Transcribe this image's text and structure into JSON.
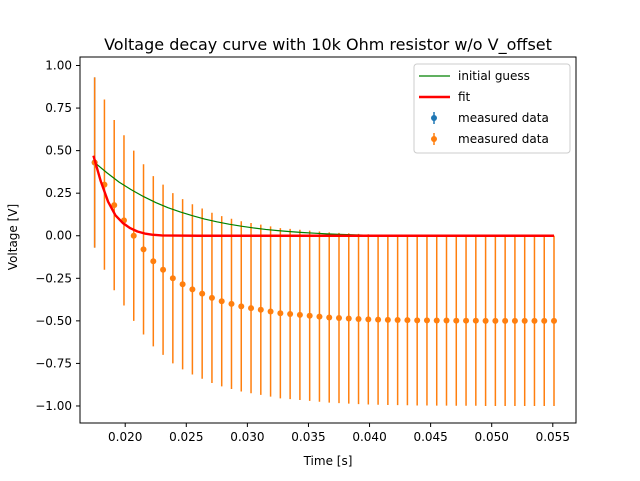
{
  "chart_data": {
    "type": "scatter",
    "title": "Voltage decay curve with 10k Ohm resistor w/o V_offset",
    "xlabel": "Time [s]",
    "ylabel": "Voltage [V]",
    "xlim": [
      0.0163,
      0.0569
    ],
    "ylim": [
      -1.1,
      1.05
    ],
    "xticks": [
      0.02,
      0.025,
      0.03,
      0.035,
      0.04,
      0.045,
      0.05,
      0.055
    ],
    "xtick_labels": [
      "0.020",
      "0.025",
      "0.030",
      "0.035",
      "0.040",
      "0.045",
      "0.050",
      "0.055"
    ],
    "yticks": [
      1.0,
      0.75,
      0.5,
      0.25,
      0.0,
      -0.25,
      -0.5,
      -0.75,
      -1.0
    ],
    "ytick_labels": [
      "1.00",
      "0.75",
      "0.50",
      "0.25",
      "0.00",
      "−0.25",
      "−0.50",
      "−0.75",
      "−1.00"
    ],
    "grid": false,
    "legend_position": "top-right",
    "legend": [
      {
        "label": "initial guess",
        "kind": "line",
        "color": "#008000"
      },
      {
        "label": " fit",
        "kind": "line",
        "color": "#ff0000"
      },
      {
        "label": "measured data",
        "kind": "errorbar",
        "color": "#1f77b4"
      },
      {
        "label": "measured data",
        "kind": "errorbar",
        "color": "#ff7f0e"
      }
    ],
    "series": [
      {
        "name": "initial guess",
        "kind": "line",
        "color": "#008000",
        "x": [
          0.0175,
          0.0185,
          0.0195,
          0.0205,
          0.0215,
          0.0225,
          0.0235,
          0.0245,
          0.0255,
          0.0265,
          0.0275,
          0.0285,
          0.0295,
          0.0305,
          0.0315,
          0.0325,
          0.0335,
          0.0345,
          0.0355,
          0.0365,
          0.0375,
          0.0385,
          0.0395,
          0.0405,
          0.043,
          0.046,
          0.049,
          0.052,
          0.0551
        ],
        "y": [
          0.43,
          0.37,
          0.315,
          0.27,
          0.23,
          0.195,
          0.165,
          0.14,
          0.118,
          0.098,
          0.082,
          0.068,
          0.056,
          0.046,
          0.037,
          0.03,
          0.024,
          0.019,
          0.015,
          0.011,
          0.008,
          0.006,
          0.004,
          0.003,
          0.002,
          0.001,
          0.0,
          0.0,
          0.0
        ]
      },
      {
        "name": " fit",
        "kind": "line",
        "color": "#ff0000",
        "x": [
          0.0174,
          0.018,
          0.0186,
          0.0192,
          0.0198,
          0.0204,
          0.021,
          0.0216,
          0.0222,
          0.023,
          0.024,
          0.026,
          0.03,
          0.04,
          0.0551
        ],
        "y": [
          0.47,
          0.32,
          0.2,
          0.12,
          0.075,
          0.045,
          0.025,
          0.013,
          0.006,
          0.002,
          0.001,
          0.0,
          0.0,
          0.0,
          0.0
        ]
      },
      {
        "name": "measured data",
        "kind": "errorbar",
        "color": "#1f77b4",
        "x": [
          0.0175
        ],
        "y": [
          0.43
        ],
        "yerr": [
          0.5
        ]
      },
      {
        "name": "measured data",
        "kind": "errorbar",
        "color": "#ff7f0e",
        "x": [
          0.0175,
          0.0183,
          0.0191,
          0.0199,
          0.0207,
          0.0215,
          0.0223,
          0.0231,
          0.0239,
          0.0247,
          0.0255,
          0.0263,
          0.0271,
          0.0279,
          0.0287,
          0.0295,
          0.0303,
          0.0311,
          0.0319,
          0.0327,
          0.0335,
          0.0343,
          0.0351,
          0.0359,
          0.0367,
          0.0375,
          0.0383,
          0.0391,
          0.0399,
          0.0407,
          0.0415,
          0.0423,
          0.0431,
          0.0439,
          0.0447,
          0.0455,
          0.0463,
          0.0471,
          0.0479,
          0.0487,
          0.0495,
          0.0503,
          0.0511,
          0.0519,
          0.0527,
          0.0535,
          0.0543,
          0.0551
        ],
        "y": [
          0.43,
          0.3,
          0.18,
          0.09,
          0.0,
          -0.08,
          -0.15,
          -0.2,
          -0.25,
          -0.285,
          -0.315,
          -0.34,
          -0.365,
          -0.385,
          -0.4,
          -0.415,
          -0.425,
          -0.435,
          -0.445,
          -0.455,
          -0.46,
          -0.465,
          -0.47,
          -0.475,
          -0.48,
          -0.483,
          -0.486,
          -0.489,
          -0.491,
          -0.493,
          -0.494,
          -0.495,
          -0.496,
          -0.497,
          -0.497,
          -0.498,
          -0.498,
          -0.499,
          -0.499,
          -0.499,
          -0.5,
          -0.5,
          -0.5,
          -0.5,
          -0.5,
          -0.5,
          -0.5,
          -0.5
        ],
        "yerr": [
          0.5,
          0.5,
          0.5,
          0.5,
          0.5,
          0.5,
          0.5,
          0.5,
          0.5,
          0.5,
          0.5,
          0.5,
          0.5,
          0.5,
          0.5,
          0.5,
          0.5,
          0.5,
          0.5,
          0.5,
          0.5,
          0.5,
          0.5,
          0.5,
          0.5,
          0.5,
          0.5,
          0.5,
          0.5,
          0.5,
          0.5,
          0.5,
          0.5,
          0.5,
          0.5,
          0.5,
          0.5,
          0.5,
          0.5,
          0.5,
          0.5,
          0.5,
          0.5,
          0.5,
          0.5,
          0.5,
          0.5,
          0.5
        ]
      }
    ]
  }
}
